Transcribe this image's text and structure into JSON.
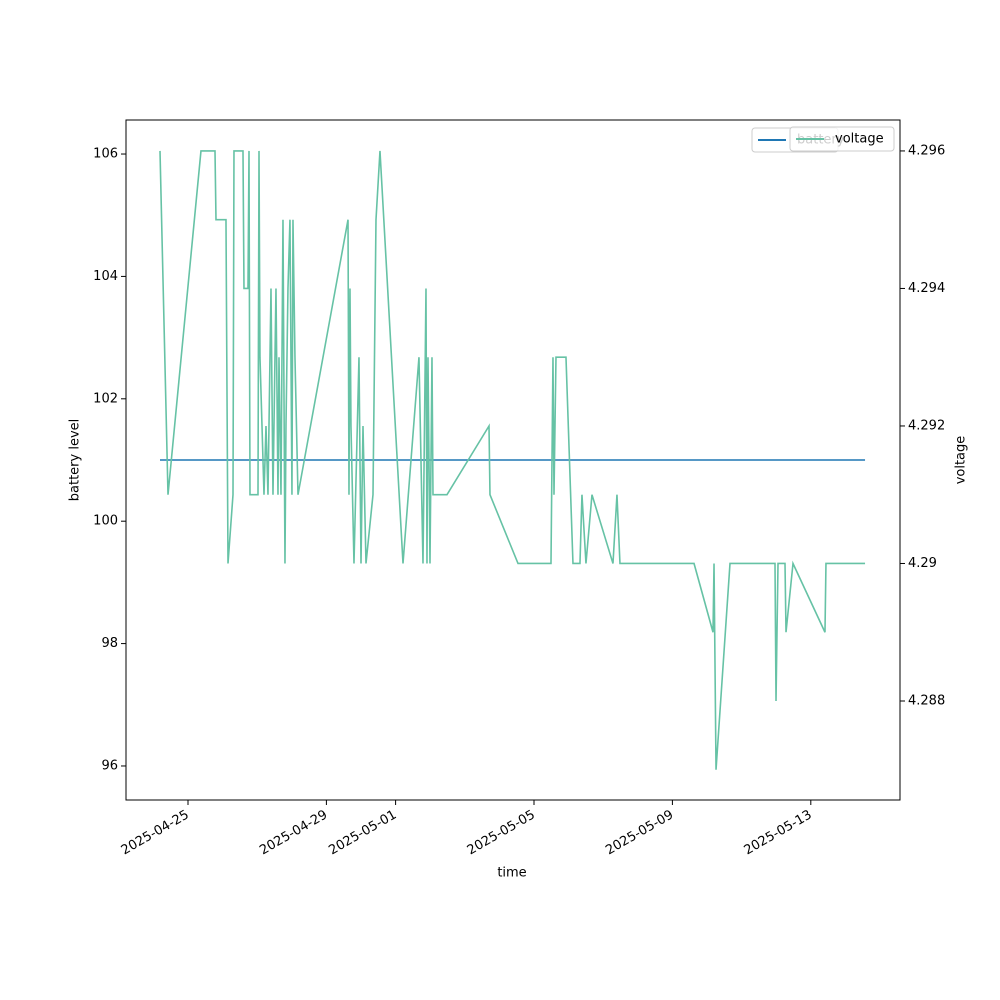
{
  "chart_data": {
    "type": "line",
    "x_label": "time",
    "y_label": "battery level",
    "y2_label": "voltage",
    "legend": "upper right",
    "grid": false,
    "xlim": [
      "2025-04-23T05:00",
      "2025-05-15T13:52"
    ],
    "xticks": [
      "2025-04-25",
      "2025-04-29",
      "2025-05-01",
      "2025-05-05",
      "2025-05-09",
      "2025-05-13"
    ],
    "ylim": [
      95.444,
      106.556
    ],
    "yticks": [
      96,
      98,
      100,
      102,
      104,
      106
    ],
    "y2lim": [
      4.28656,
      4.29645
    ],
    "y2ticks": [
      4.288,
      4.29,
      4.292,
      4.294,
      4.296
    ],
    "x": [
      "2025-04-24T04:35",
      "2025-04-24T10:08",
      "2025-04-25T09:00",
      "2025-04-25T18:44",
      "2025-04-25T19:25",
      "2025-04-26T02:21",
      "2025-04-26T03:45",
      "2025-04-26T07:13",
      "2025-04-26T07:54",
      "2025-04-26T14:09",
      "2025-04-26T14:50",
      "2025-04-26T17:37",
      "2025-04-26T18:19",
      "2025-04-26T19:00",
      "2025-04-27T00:33",
      "2025-04-27T01:15",
      "2025-04-27T01:56",
      "2025-04-27T03:20",
      "2025-04-27T04:43",
      "2025-04-27T06:06",
      "2025-04-27T07:29",
      "2025-04-27T09:34",
      "2025-04-27T10:57",
      "2025-04-27T13:02",
      "2025-04-27T14:25",
      "2025-04-27T15:07",
      "2025-04-27T16:30",
      "2025-04-27T17:53",
      "2025-04-27T19:16",
      "2025-04-27T19:58",
      "2025-04-27T21:21",
      "2025-04-27T22:44",
      "2025-04-28T00:07",
      "2025-04-28T00:49",
      "2025-04-28T02:12",
      "2025-04-28T04:18",
      "2025-04-29T15:00",
      "2025-04-29T15:40",
      "2025-04-29T16:22",
      "2025-04-29T17:03",
      "2025-04-29T19:08",
      "2025-04-29T22:36",
      "2025-04-30T00:00",
      "2025-04-30T01:23",
      "2025-04-30T03:28",
      "2025-04-30T08:19",
      "2025-04-30T10:24",
      "2025-04-30T13:10",
      "2025-05-01T05:08",
      "2025-05-01T16:13",
      "2025-05-01T19:00",
      "2025-05-01T21:05",
      "2025-05-01T21:46",
      "2025-05-01T22:28",
      "2025-05-01T23:51",
      "2025-05-02T01:14",
      "2025-05-02T01:56",
      "2025-05-02T11:39",
      "2025-05-03T16:47",
      "2025-05-03T17:28",
      "2025-05-04T12:54",
      "2025-05-05T11:47",
      "2025-05-05T13:10",
      "2025-05-05T13:52",
      "2025-05-05T15:15",
      "2025-05-05T22:11",
      "2025-05-06T03:02",
      "2025-05-06T07:53",
      "2025-05-06T09:16",
      "2025-05-06T12:03",
      "2025-05-06T16:13",
      "2025-05-07T06:47",
      "2025-05-07T09:33",
      "2025-05-07T11:38",
      "2025-05-09T15:00",
      "2025-05-10T04:10",
      "2025-05-10T04:52",
      "2025-05-10T06:15",
      "2025-05-10T15:57",
      "2025-05-11T23:10",
      "2025-05-11T23:52",
      "2025-05-12T01:15",
      "2025-05-12T06:06",
      "2025-05-12T06:48",
      "2025-05-12T11:39",
      "2025-05-13T09:50",
      "2025-05-13T10:31",
      "2025-05-14T13:37"
    ],
    "series": [
      {
        "name": "battery",
        "color": "#1f77b4",
        "axis": "y",
        "values": [
          101,
          101,
          101,
          101,
          101,
          101,
          101,
          101,
          101,
          101,
          101,
          101,
          101,
          101,
          101,
          101,
          101,
          101,
          101,
          101,
          101,
          101,
          101,
          101,
          101,
          101,
          101,
          101,
          101,
          101,
          101,
          101,
          101,
          101,
          101,
          101,
          101,
          101,
          101,
          101,
          101,
          101,
          101,
          101,
          101,
          101,
          101,
          101,
          101,
          101,
          101,
          101,
          101,
          101,
          101,
          101,
          101,
          101,
          101,
          101,
          101,
          101,
          101,
          101,
          101,
          101,
          101,
          101,
          101,
          101,
          101,
          101,
          101,
          101,
          101,
          101,
          101,
          101,
          101,
          101,
          101,
          101,
          101,
          101,
          101,
          101,
          101,
          101
        ]
      },
      {
        "name": "voltage",
        "color": "#66c2a5",
        "axis": "y2",
        "values": [
          4.296,
          4.291,
          4.296,
          4.296,
          4.295,
          4.295,
          4.29,
          4.291,
          4.296,
          4.296,
          4.294,
          4.294,
          4.296,
          4.291,
          4.291,
          4.296,
          4.293,
          4.292,
          4.291,
          4.292,
          4.291,
          4.294,
          4.291,
          4.294,
          4.291,
          4.293,
          4.291,
          4.295,
          4.29,
          4.292,
          4.294,
          4.295,
          4.291,
          4.295,
          4.293,
          4.291,
          4.295,
          4.291,
          4.294,
          4.292,
          4.29,
          4.293,
          4.29,
          4.292,
          4.29,
          4.291,
          4.295,
          4.296,
          4.29,
          4.293,
          4.29,
          4.294,
          4.29,
          4.293,
          4.29,
          4.293,
          4.291,
          4.291,
          4.292,
          4.291,
          4.29,
          4.29,
          4.293,
          4.291,
          4.293,
          4.293,
          4.29,
          4.29,
          4.291,
          4.29,
          4.291,
          4.29,
          4.291,
          4.29,
          4.29,
          4.289,
          4.29,
          4.287,
          4.29,
          4.29,
          4.288,
          4.29,
          4.29,
          4.289,
          4.29,
          4.289,
          4.29,
          4.29
        ]
      }
    ]
  }
}
